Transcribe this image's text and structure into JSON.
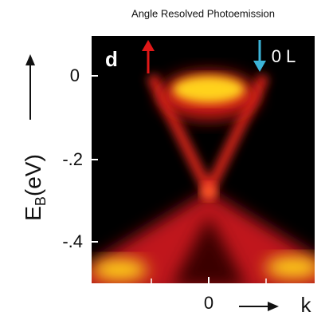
{
  "title": "Angle Resolved Photoemission",
  "panel_label": "d",
  "annotation": "0 L",
  "y_axis": {
    "label_main": "E",
    "label_sub": "B",
    "label_unit": "(eV)",
    "ticks": [
      "0",
      "-.2",
      "-.4"
    ]
  },
  "x_axis": {
    "ticks": [
      "0"
    ],
    "label": "k"
  }
}
